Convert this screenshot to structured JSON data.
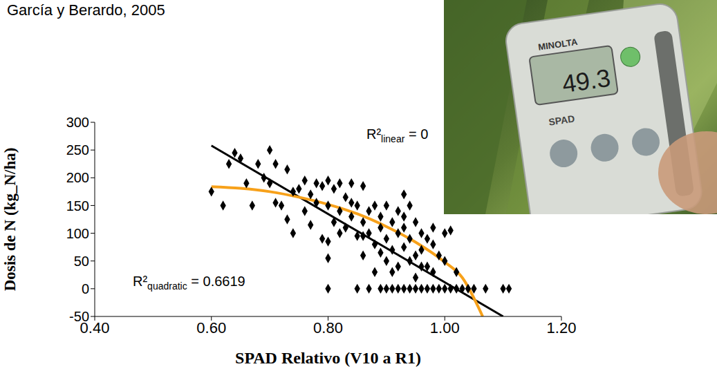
{
  "chart_data": {
    "type": "scatter",
    "title": "García y Berardo, 2005",
    "x_label": "SPAD Relativo (V10 a R1)",
    "y_label": "Dosis de N (kg_N/ha)",
    "xlim": [
      0.4,
      1.2
    ],
    "xticks": [
      {
        "value": 0.4,
        "label": "0.40"
      },
      {
        "value": 0.6,
        "label": "0.60"
      },
      {
        "value": 0.8,
        "label": "0.80"
      },
      {
        "value": 1.0,
        "label": "1.00"
      },
      {
        "value": 1.2,
        "label": "1.20"
      }
    ],
    "ylim": [
      -50,
      300
    ],
    "yticks": [
      -50,
      0,
      50,
      100,
      150,
      200,
      250,
      300
    ],
    "grid": false,
    "series": [
      {
        "type": "scatter",
        "color": "#000000",
        "marker": "diamond",
        "x": [
          0.6,
          0.62,
          0.63,
          0.64,
          0.65,
          0.66,
          0.67,
          0.68,
          0.69,
          0.7,
          0.7,
          0.71,
          0.71,
          0.72,
          0.73,
          0.73,
          0.74,
          0.75,
          0.76,
          0.77,
          0.77,
          0.78,
          0.78,
          0.79,
          0.79,
          0.8,
          0.8,
          0.8,
          0.8,
          0.8,
          0.81,
          0.81,
          0.82,
          0.82,
          0.83,
          0.83,
          0.84,
          0.84,
          0.85,
          0.85,
          0.85,
          0.86,
          0.86,
          0.86,
          0.87,
          0.87,
          0.87,
          0.88,
          0.88,
          0.88,
          0.89,
          0.89,
          0.89,
          0.9,
          0.9,
          0.9,
          0.9,
          0.91,
          0.91,
          0.91,
          0.92,
          0.92,
          0.92,
          0.92,
          0.93,
          0.93,
          0.93,
          0.93,
          0.94,
          0.94,
          0.94,
          0.94,
          0.95,
          0.95,
          0.95,
          0.95,
          0.96,
          0.96,
          0.96,
          0.97,
          0.97,
          0.97,
          0.98,
          0.98,
          0.98,
          0.99,
          0.99,
          1.0,
          1.0,
          1.0,
          1.01,
          1.01,
          1.02,
          1.02,
          1.03,
          1.04,
          1.05,
          1.07,
          1.1,
          1.11,
          0.76,
          0.74,
          0.82,
          0.84,
          0.86,
          0.91,
          0.96,
          0.98,
          0.89,
          0.93
        ],
        "values": [
          175,
          150,
          225,
          245,
          235,
          190,
          150,
          225,
          200,
          190,
          250,
          225,
          155,
          150,
          215,
          125,
          100,
          180,
          140,
          170,
          115,
          190,
          155,
          90,
          185,
          0,
          55,
          85,
          150,
          195,
          180,
          120,
          140,
          100,
          165,
          110,
          130,
          190,
          150,
          0,
          95,
          185,
          120,
          60,
          140,
          100,
          0,
          150,
          80,
          30,
          130,
          110,
          0,
          150,
          90,
          50,
          0,
          120,
          70,
          0,
          140,
          100,
          40,
          0,
          170,
          110,
          75,
          0,
          150,
          90,
          50,
          0,
          120,
          60,
          20,
          0,
          100,
          70,
          0,
          90,
          40,
          0,
          80,
          30,
          0,
          60,
          0,
          100,
          50,
          0,
          105,
          0,
          30,
          0,
          0,
          0,
          0,
          0,
          0,
          0,
          195,
          175,
          190,
          155,
          95,
          30,
          40,
          110,
          65,
          130
        ]
      },
      {
        "type": "line",
        "color": "#000000",
        "line_style": "solid",
        "x": [
          0.6,
          1.1
        ],
        "values": [
          258,
          -50
        ]
      },
      {
        "type": "line",
        "color": "#f7a11a",
        "line_style": "solid",
        "x": [
          0.6,
          0.65,
          0.7,
          0.75,
          0.8,
          0.85,
          0.9,
          0.95,
          1.0,
          1.03,
          1.065
        ],
        "values": [
          184,
          181,
          175,
          165,
          152,
          135,
          112,
          84,
          48,
          20,
          -50
        ]
      }
    ],
    "annotations": [
      {
        "label": "R²",
        "subscript": "quadratic",
        "text": "= 0.6619"
      },
      {
        "label": "R²",
        "subscript": "linear",
        "text": "= 0"
      }
    ],
    "photo": {
      "brand": "MINOLTA",
      "model": "SPAD",
      "display": "49.3"
    }
  }
}
